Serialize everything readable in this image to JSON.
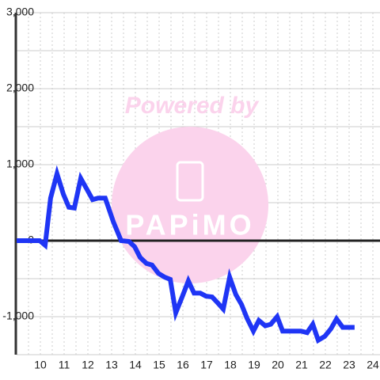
{
  "chart_data": {
    "type": "line",
    "watermark": {
      "title": "Powered by",
      "logo": "PAPiMO"
    },
    "x": [
      9,
      9.97,
      10.2,
      10.43,
      10.7,
      10.97,
      11.2,
      11.43,
      11.7,
      11.97,
      12.2,
      12.43,
      12.73,
      13.07,
      13.4,
      13.73,
      13.97,
      14.2,
      14.47,
      14.7,
      14.97,
      15.23,
      15.47,
      15.7,
      15.97,
      16.23,
      16.47,
      16.73,
      16.97,
      17.23,
      17.47,
      17.7,
      17.97,
      18.23,
      18.47,
      18.7,
      18.97,
      19.2,
      19.47,
      19.7,
      19.97,
      20.2,
      20.47,
      20.73,
      20.97,
      21.23,
      21.47,
      21.7,
      21.97,
      22.23,
      22.47,
      22.73,
      22.97,
      23.23
    ],
    "series": [
      {
        "color": "#1f35f5",
        "values": [
          0,
          0,
          -60,
          560,
          880,
          610,
          440,
          430,
          820,
          670,
          540,
          560,
          560,
          250,
          0,
          -10,
          -80,
          -220,
          -300,
          -320,
          -430,
          -480,
          -510,
          -950,
          -740,
          -530,
          -690,
          -690,
          -730,
          -740,
          -820,
          -900,
          -480,
          -710,
          -840,
          -1020,
          -1190,
          -1050,
          -1120,
          -1100,
          -1000,
          -1190,
          -1190,
          -1190,
          -1190,
          -1210,
          -1100,
          -1310,
          -1260,
          -1160,
          -1030,
          -1140,
          -1140,
          -1140
        ]
      }
    ],
    "xlim": [
      9,
      24.3
    ],
    "xticks": [
      10,
      11,
      12,
      13,
      14,
      15,
      16,
      17,
      18,
      19,
      20,
      21,
      22,
      23,
      24
    ],
    "minor_xticks": [
      9.5,
      10.5,
      11.5,
      12.5,
      13.5,
      14.5,
      15.5,
      16.5,
      17.5,
      18.5,
      19.5,
      20.5,
      21.5,
      22.5,
      23.5
    ],
    "ylim": [
      -1500,
      3000
    ],
    "yticks": [
      {
        "value": 3000,
        "label": "3,000"
      },
      {
        "value": 2000,
        "label": "2,000"
      },
      {
        "value": 1000,
        "label": "1,000"
      },
      0,
      {
        "value": -1000,
        "label": "-1,000"
      }
    ],
    "minor_yticks": [
      2500,
      1500,
      500,
      -500,
      -1500
    ],
    "grid": true
  }
}
